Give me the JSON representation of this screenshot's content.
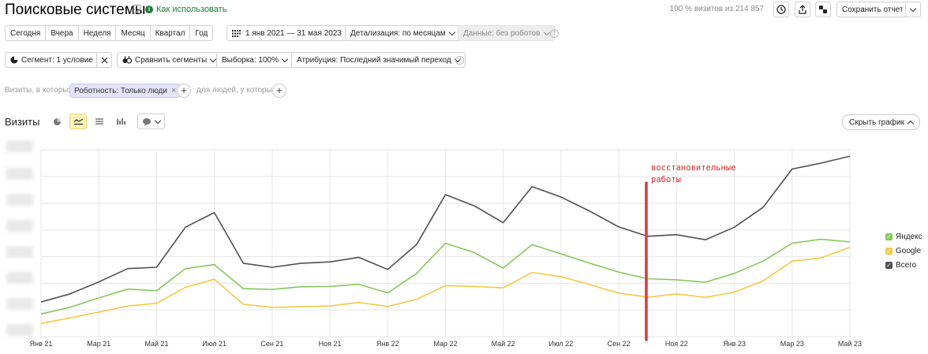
{
  "header": {
    "title": "Поисковые системы",
    "how_to_use": "Как использовать",
    "visits_total": "100 % визитов из 214 857",
    "save_report": "Сохранить отчет"
  },
  "periods": [
    "Сегодня",
    "Вчера",
    "Неделя",
    "Месяц",
    "Квартал",
    "Год"
  ],
  "date_range": "1 янв 2021 — 31 мая 2023",
  "detail": "Детализация: по месяцам",
  "data_filter": "Данные: без роботов",
  "toolbar2": {
    "segment": "Сегмент: 1 условие",
    "compare": "Сравнить сегменты",
    "sample": "Выборка: 100%",
    "attribution": "Атрибуция: Последний значимый переход"
  },
  "filters": {
    "visits_where": "Визиты, в которых",
    "chip": "Роботность: Только люди",
    "people_where": "для людей, у которых"
  },
  "chart_section": {
    "title": "Визиты",
    "hide_chart": "Скрыть график"
  },
  "annotation_text": [
    "восстановительные",
    "работы"
  ],
  "colors": {
    "total": "#505050",
    "yandex": "#86c75c",
    "google": "#f7c843",
    "marker": "#d63b3b"
  },
  "chart_data": {
    "type": "line",
    "x_tick_labels": [
      "Янв 21",
      "Мар 21",
      "Май 21",
      "Июл 21",
      "Сен 21",
      "Ноя 21",
      "Янв 22",
      "Мар 22",
      "Май 22",
      "Июл 22",
      "Сен 22",
      "Ноя 22",
      "Янв 23",
      "Мар 23",
      "Май 23"
    ],
    "x": [
      "2021-01",
      "2021-02",
      "2021-03",
      "2021-04",
      "2021-05",
      "2021-06",
      "2021-07",
      "2021-08",
      "2021-09",
      "2021-10",
      "2021-11",
      "2021-12",
      "2022-01",
      "2022-02",
      "2022-03",
      "2022-04",
      "2022-05",
      "2022-06",
      "2022-07",
      "2022-08",
      "2022-09",
      "2022-10",
      "2022-11",
      "2022-12",
      "2023-01",
      "2023-02",
      "2023-03",
      "2023-04",
      "2023-05"
    ],
    "ylim": [
      0,
      7
    ],
    "grid": true,
    "legend_position": "right",
    "series": [
      {
        "name": "Всего",
        "color_key": "total",
        "values": [
          1.3,
          1.6,
          2.05,
          2.55,
          2.6,
          4.1,
          4.65,
          2.75,
          2.6,
          2.75,
          2.8,
          2.97,
          2.52,
          3.45,
          5.32,
          4.9,
          4.27,
          5.62,
          5.23,
          4.7,
          4.11,
          3.76,
          3.82,
          3.63,
          4.1,
          4.85,
          6.28,
          6.5,
          6.76
        ]
      },
      {
        "name": "Яндекс",
        "color_key": "yandex",
        "values": [
          0.85,
          1.1,
          1.45,
          1.78,
          1.72,
          2.55,
          2.7,
          1.8,
          1.77,
          1.87,
          1.88,
          1.96,
          1.64,
          2.37,
          3.5,
          3.15,
          2.57,
          3.45,
          3.1,
          2.75,
          2.42,
          2.17,
          2.13,
          2.04,
          2.37,
          2.83,
          3.5,
          3.65,
          3.55
        ]
      },
      {
        "name": "Google",
        "color_key": "google",
        "values": [
          0.5,
          0.7,
          0.92,
          1.15,
          1.25,
          1.85,
          2.15,
          1.21,
          1.1,
          1.12,
          1.15,
          1.28,
          1.13,
          1.4,
          1.91,
          1.88,
          1.83,
          2.4,
          2.25,
          1.95,
          1.63,
          1.48,
          1.6,
          1.47,
          1.67,
          2.09,
          2.83,
          2.95,
          3.35
        ]
      }
    ]
  }
}
